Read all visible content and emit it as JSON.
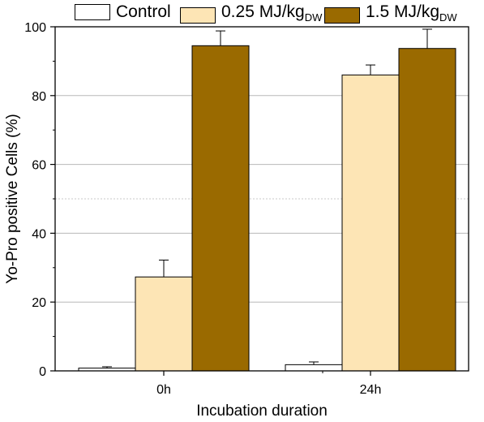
{
  "legend": {
    "control": "Control",
    "low_main": "0.25 MJ/kg",
    "low_sub": "DW",
    "high_main": "1.5 MJ/kg",
    "high_sub": "DW"
  },
  "chart_data": {
    "type": "bar",
    "title": "",
    "xlabel": "Incubation duration",
    "ylabel": "Yo-Pro positive Cells (%)",
    "categories": [
      "0h",
      "24h"
    ],
    "ylim": [
      0,
      100
    ],
    "yticks": [
      0,
      20,
      40,
      60,
      80,
      100
    ],
    "grid": true,
    "legend_position": "top",
    "series": [
      {
        "name": "Control",
        "color": "#ffffff",
        "values": [
          0.8,
          1.8
        ],
        "errors": [
          0.4,
          0.8
        ]
      },
      {
        "name": "0.25 MJ/kgDW",
        "color": "#fde5b5",
        "values": [
          27.3,
          86.0
        ],
        "errors": [
          4.9,
          2.9
        ]
      },
      {
        "name": "1.5 MJ/kgDW",
        "color": "#9a6a00",
        "values": [
          94.5,
          93.7
        ],
        "errors": [
          4.3,
          5.6
        ]
      }
    ]
  }
}
